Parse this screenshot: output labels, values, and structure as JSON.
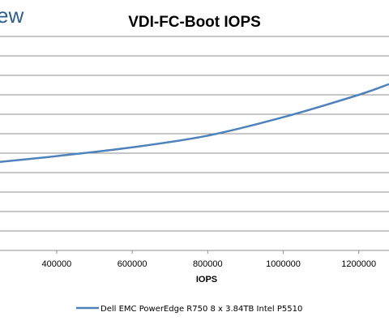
{
  "watermark": "ew",
  "chart_data": {
    "type": "line",
    "title": "VDI-FC-Boot IOPS",
    "xlabel": "IOPS",
    "ylabel": "",
    "xlim": [
      250000,
      1280000
    ],
    "x_ticks": [
      400000,
      600000,
      800000,
      1000000,
      1200000
    ],
    "ylim": [
      0,
      11
    ],
    "gridlines_y": [
      0,
      1,
      2,
      3,
      4,
      5,
      6,
      7,
      8,
      9,
      10,
      11
    ],
    "grid": "horizontal",
    "legend_position": "bottom",
    "series": [
      {
        "name": "Dell EMC PowerEdge R750 8 x 3.84TB Intel P5510",
        "color": "#4f81bd",
        "x": [
          250000,
          400000,
          600000,
          800000,
          1000000,
          1200000,
          1280000
        ],
        "y": [
          4.55,
          4.85,
          5.3,
          5.9,
          6.85,
          8.0,
          8.55
        ]
      }
    ]
  }
}
